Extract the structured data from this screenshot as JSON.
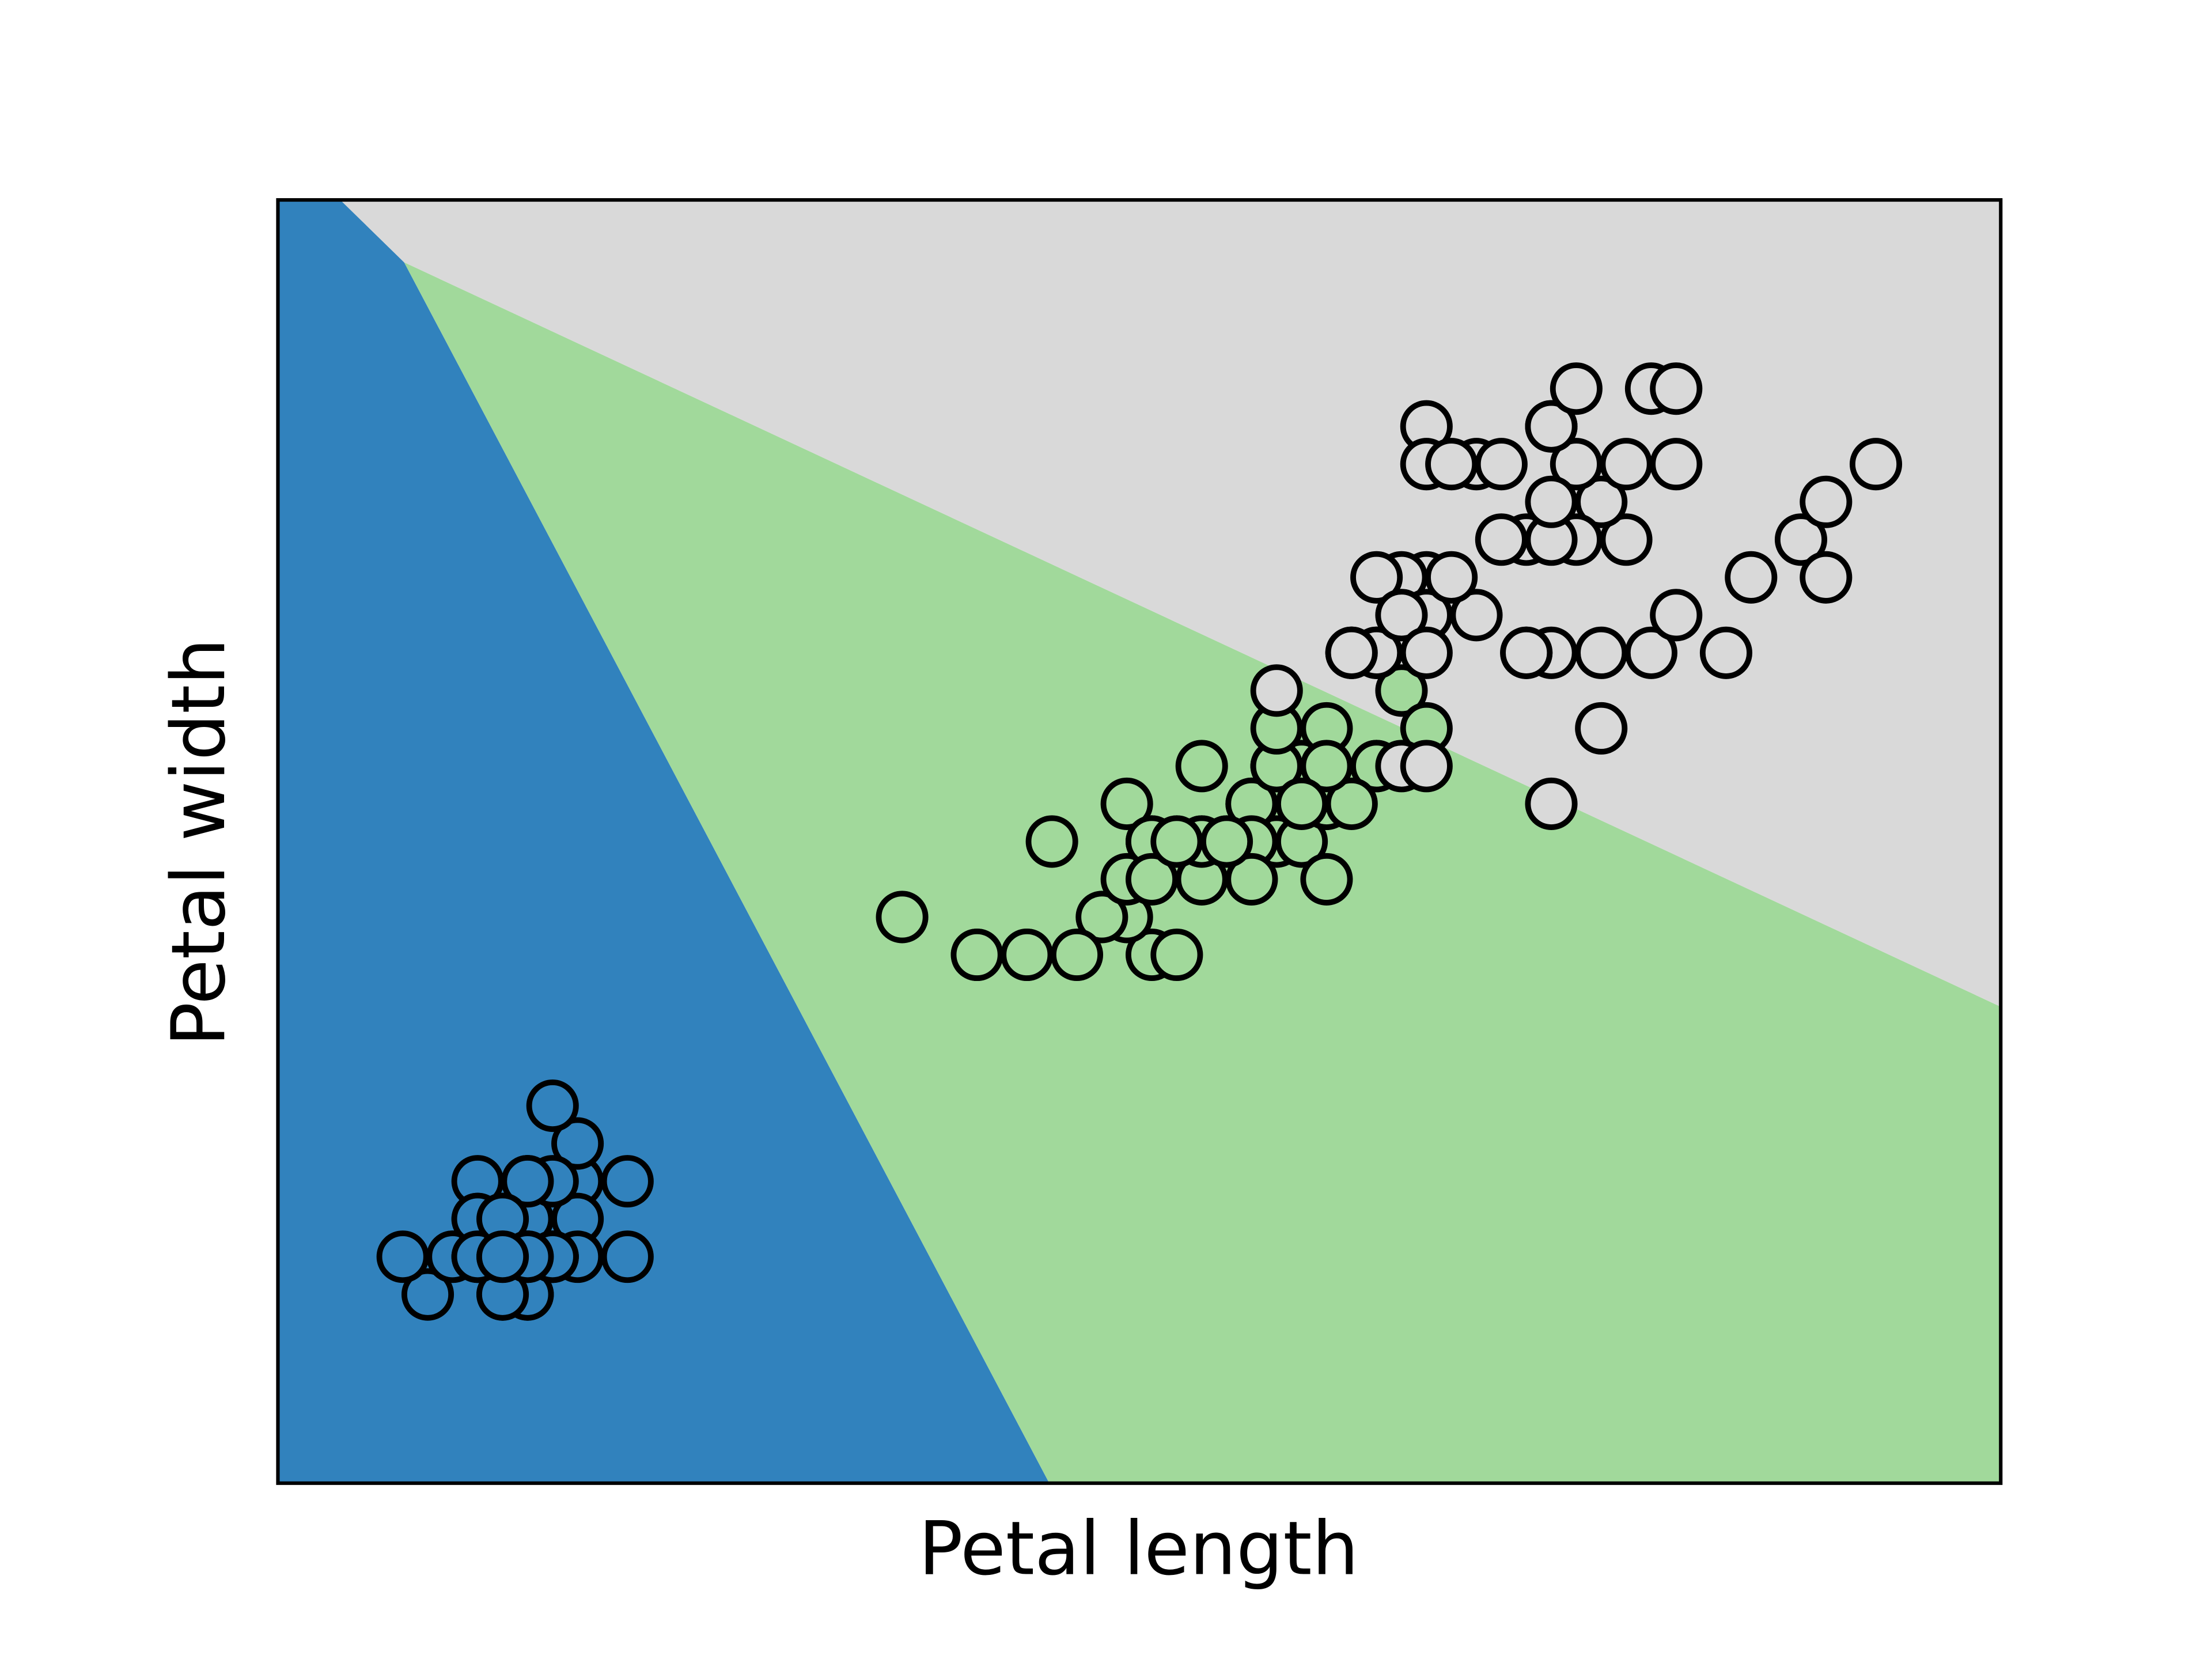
{
  "chart_data": {
    "type": "scatter",
    "xlabel": "Petal length",
    "ylabel": "Petal width",
    "xlim": [
      0.5,
      7.4
    ],
    "ylim": [
      -0.4,
      3.0
    ],
    "series": [
      {
        "color": "#3182bd",
        "x": [
          1.4,
          1.4,
          1.3,
          1.5,
          1.4,
          1.7,
          1.4,
          1.5,
          1.4,
          1.5,
          1.5,
          1.6,
          1.4,
          1.1,
          1.2,
          1.5,
          1.3,
          1.4,
          1.7,
          1.5,
          1.7,
          1.5,
          1.0,
          1.7,
          1.9,
          1.6,
          1.6,
          1.5,
          1.4,
          1.6,
          1.6,
          1.5,
          1.5,
          1.4,
          1.5,
          1.2,
          1.3,
          1.4,
          1.3,
          1.5,
          1.3,
          1.3,
          1.3,
          1.6,
          1.9,
          1.4,
          1.6,
          1.4,
          1.5,
          1.4
        ],
        "y": [
          0.2,
          0.2,
          0.2,
          0.2,
          0.2,
          0.4,
          0.3,
          0.2,
          0.2,
          0.1,
          0.2,
          0.2,
          0.1,
          0.1,
          0.2,
          0.4,
          0.4,
          0.3,
          0.3,
          0.3,
          0.2,
          0.4,
          0.2,
          0.5,
          0.2,
          0.2,
          0.4,
          0.2,
          0.2,
          0.2,
          0.2,
          0.4,
          0.1,
          0.2,
          0.2,
          0.2,
          0.2,
          0.1,
          0.2,
          0.2,
          0.3,
          0.3,
          0.2,
          0.6,
          0.4,
          0.3,
          0.2,
          0.2,
          0.2,
          0.2
        ]
      },
      {
        "color": "#a1d99b",
        "x": [
          4.7,
          4.5,
          4.9,
          4.0,
          4.6,
          4.5,
          4.7,
          3.3,
          4.6,
          3.9,
          3.5,
          4.2,
          4.0,
          4.7,
          3.6,
          4.4,
          4.5,
          4.1,
          4.5,
          3.9,
          4.8,
          4.0,
          4.9,
          4.7,
          4.3,
          4.4,
          4.8,
          5.0,
          4.5,
          3.5,
          3.8,
          3.7,
          3.9,
          5.1,
          4.5,
          4.5,
          4.7,
          4.4,
          4.1,
          4.0,
          4.4,
          4.6,
          4.0,
          3.3,
          4.2,
          4.2,
          4.2,
          4.3,
          3.0,
          4.1
        ],
        "y": [
          1.4,
          1.5,
          1.5,
          1.3,
          1.5,
          1.3,
          1.6,
          1.0,
          1.3,
          1.4,
          1.0,
          1.5,
          1.0,
          1.4,
          1.3,
          1.4,
          1.5,
          1.0,
          1.5,
          1.1,
          1.8,
          1.3,
          1.5,
          1.2,
          1.3,
          1.4,
          1.4,
          1.7,
          1.5,
          1.0,
          1.1,
          1.0,
          1.2,
          1.6,
          1.5,
          1.6,
          1.5,
          1.3,
          1.3,
          1.3,
          1.2,
          1.4,
          1.2,
          1.0,
          1.3,
          1.2,
          1.3,
          1.3,
          1.1,
          1.3
        ]
      },
      {
        "color": "#d9d9d9",
        "x": [
          6.0,
          5.1,
          5.9,
          5.6,
          5.8,
          6.6,
          4.5,
          6.3,
          5.8,
          6.1,
          5.1,
          5.3,
          5.5,
          5.0,
          5.1,
          5.3,
          5.5,
          6.7,
          6.9,
          5.0,
          5.7,
          4.9,
          6.7,
          4.9,
          5.7,
          6.0,
          4.8,
          4.9,
          5.6,
          5.8,
          6.1,
          6.4,
          5.6,
          5.1,
          5.6,
          6.1,
          5.6,
          5.5,
          4.8,
          5.4,
          5.6,
          5.1,
          5.1,
          5.9,
          5.7,
          5.2,
          5.0,
          5.2,
          5.4,
          5.1
        ],
        "y": [
          2.5,
          1.9,
          2.1,
          1.8,
          2.2,
          2.1,
          1.7,
          1.8,
          1.8,
          2.5,
          2.0,
          1.9,
          2.1,
          2.0,
          2.4,
          2.3,
          1.8,
          2.2,
          2.3,
          1.5,
          2.3,
          2.0,
          2.0,
          1.8,
          2.1,
          1.8,
          1.8,
          1.8,
          2.1,
          1.6,
          1.9,
          2.0,
          2.2,
          1.5,
          1.4,
          2.3,
          2.4,
          1.8,
          1.8,
          2.1,
          2.4,
          2.3,
          1.9,
          2.3,
          2.5,
          2.3,
          1.9,
          2.0,
          2.3,
          1.8
        ]
      }
    ]
  }
}
